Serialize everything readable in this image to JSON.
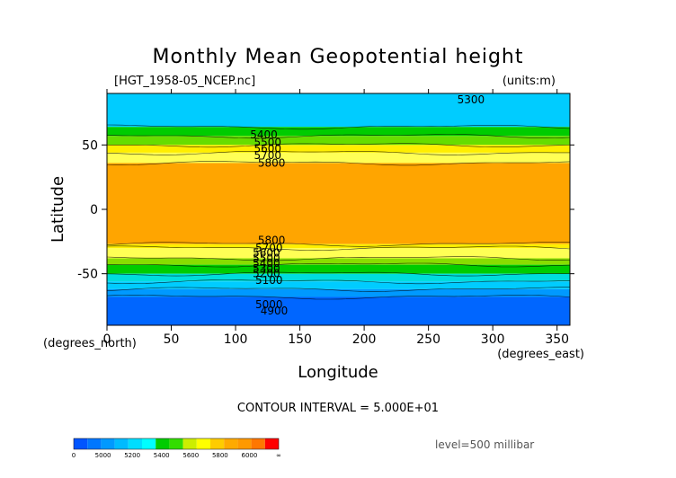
{
  "chart_data": {
    "type": "heatmap",
    "title": "Monthly Mean Geopotential height",
    "file_label": "[HGT_1958-05_NCEP.nc]",
    "units_label": "(units:m)",
    "xlabel": "Longitude",
    "xunit_label": "(degrees_east)",
    "ylabel": "Latitude",
    "yunit_label": "(degrees_north)",
    "xlim": [
      0,
      360
    ],
    "ylim": [
      -90,
      90
    ],
    "x_ticks": [
      0,
      50,
      100,
      150,
      200,
      250,
      300,
      350
    ],
    "y_ticks": [
      50,
      0,
      -50
    ],
    "contour_interval_label": "CONTOUR INTERVAL = 5.000E+01",
    "level_label": "level=500 millibar",
    "bands": [
      {
        "lat_top": 90,
        "lat_bottom": 64,
        "color": "#00ccff"
      },
      {
        "lat_top": 64,
        "lat_bottom": 57,
        "color": "#00cc00"
      },
      {
        "lat_top": 57,
        "lat_bottom": 50,
        "color": "#66dd00"
      },
      {
        "lat_top": 50,
        "lat_bottom": 44,
        "color": "#ffee00"
      },
      {
        "lat_top": 44,
        "lat_bottom": 36,
        "color": "#ffff55"
      },
      {
        "lat_top": 36,
        "lat_bottom": -27,
        "color": "#ffa500"
      },
      {
        "lat_top": -27,
        "lat_bottom": -30,
        "color": "#ffee00"
      },
      {
        "lat_top": -30,
        "lat_bottom": -38,
        "color": "#ffff55"
      },
      {
        "lat_top": -38,
        "lat_bottom": -43,
        "color": "#88dd00"
      },
      {
        "lat_top": -43,
        "lat_bottom": -50,
        "color": "#00cc00"
      },
      {
        "lat_top": -50,
        "lat_bottom": -56,
        "color": "#00dddd"
      },
      {
        "lat_top": -56,
        "lat_bottom": -62,
        "color": "#00ccff"
      },
      {
        "lat_top": -62,
        "lat_bottom": -68,
        "color": "#0099ff"
      },
      {
        "lat_top": -68,
        "lat_bottom": -90,
        "color": "#0066ff"
      }
    ],
    "contour_labels": [
      {
        "text": "5300",
        "lon": 283,
        "lat": 85
      },
      {
        "text": "5400",
        "lon": 122,
        "lat": 58
      },
      {
        "text": "5500",
        "lon": 125,
        "lat": 52
      },
      {
        "text": "5600",
        "lon": 125,
        "lat": 47
      },
      {
        "text": "5700",
        "lon": 125,
        "lat": 42
      },
      {
        "text": "5800",
        "lon": 128,
        "lat": 36
      },
      {
        "text": "5800",
        "lon": 128,
        "lat": -24
      },
      {
        "text": "5700",
        "lon": 126,
        "lat": -30
      },
      {
        "text": "5600",
        "lon": 124,
        "lat": -34
      },
      {
        "text": "5500",
        "lon": 124,
        "lat": -38
      },
      {
        "text": "5400",
        "lon": 124,
        "lat": -42
      },
      {
        "text": "5300",
        "lon": 124,
        "lat": -46
      },
      {
        "text": "5200",
        "lon": 124,
        "lat": -50
      },
      {
        "text": "5100",
        "lon": 126,
        "lat": -55
      },
      {
        "text": "5000",
        "lon": 126,
        "lat": -74
      },
      {
        "text": "4900",
        "lon": 130,
        "lat": -79
      }
    ],
    "colorbar": {
      "colors": [
        "#0055ff",
        "#0077ff",
        "#0099ff",
        "#00bbff",
        "#00ddff",
        "#00ffff",
        "#00cc00",
        "#33dd00",
        "#ccee00",
        "#ffff00",
        "#ffcc00",
        "#ffaa00",
        "#ff9900",
        "#ff7700",
        "#ff0000"
      ],
      "labels": [
        "0",
        "5000",
        "5200",
        "5400",
        "5600",
        "5800",
        "6000",
        "∞"
      ]
    }
  }
}
